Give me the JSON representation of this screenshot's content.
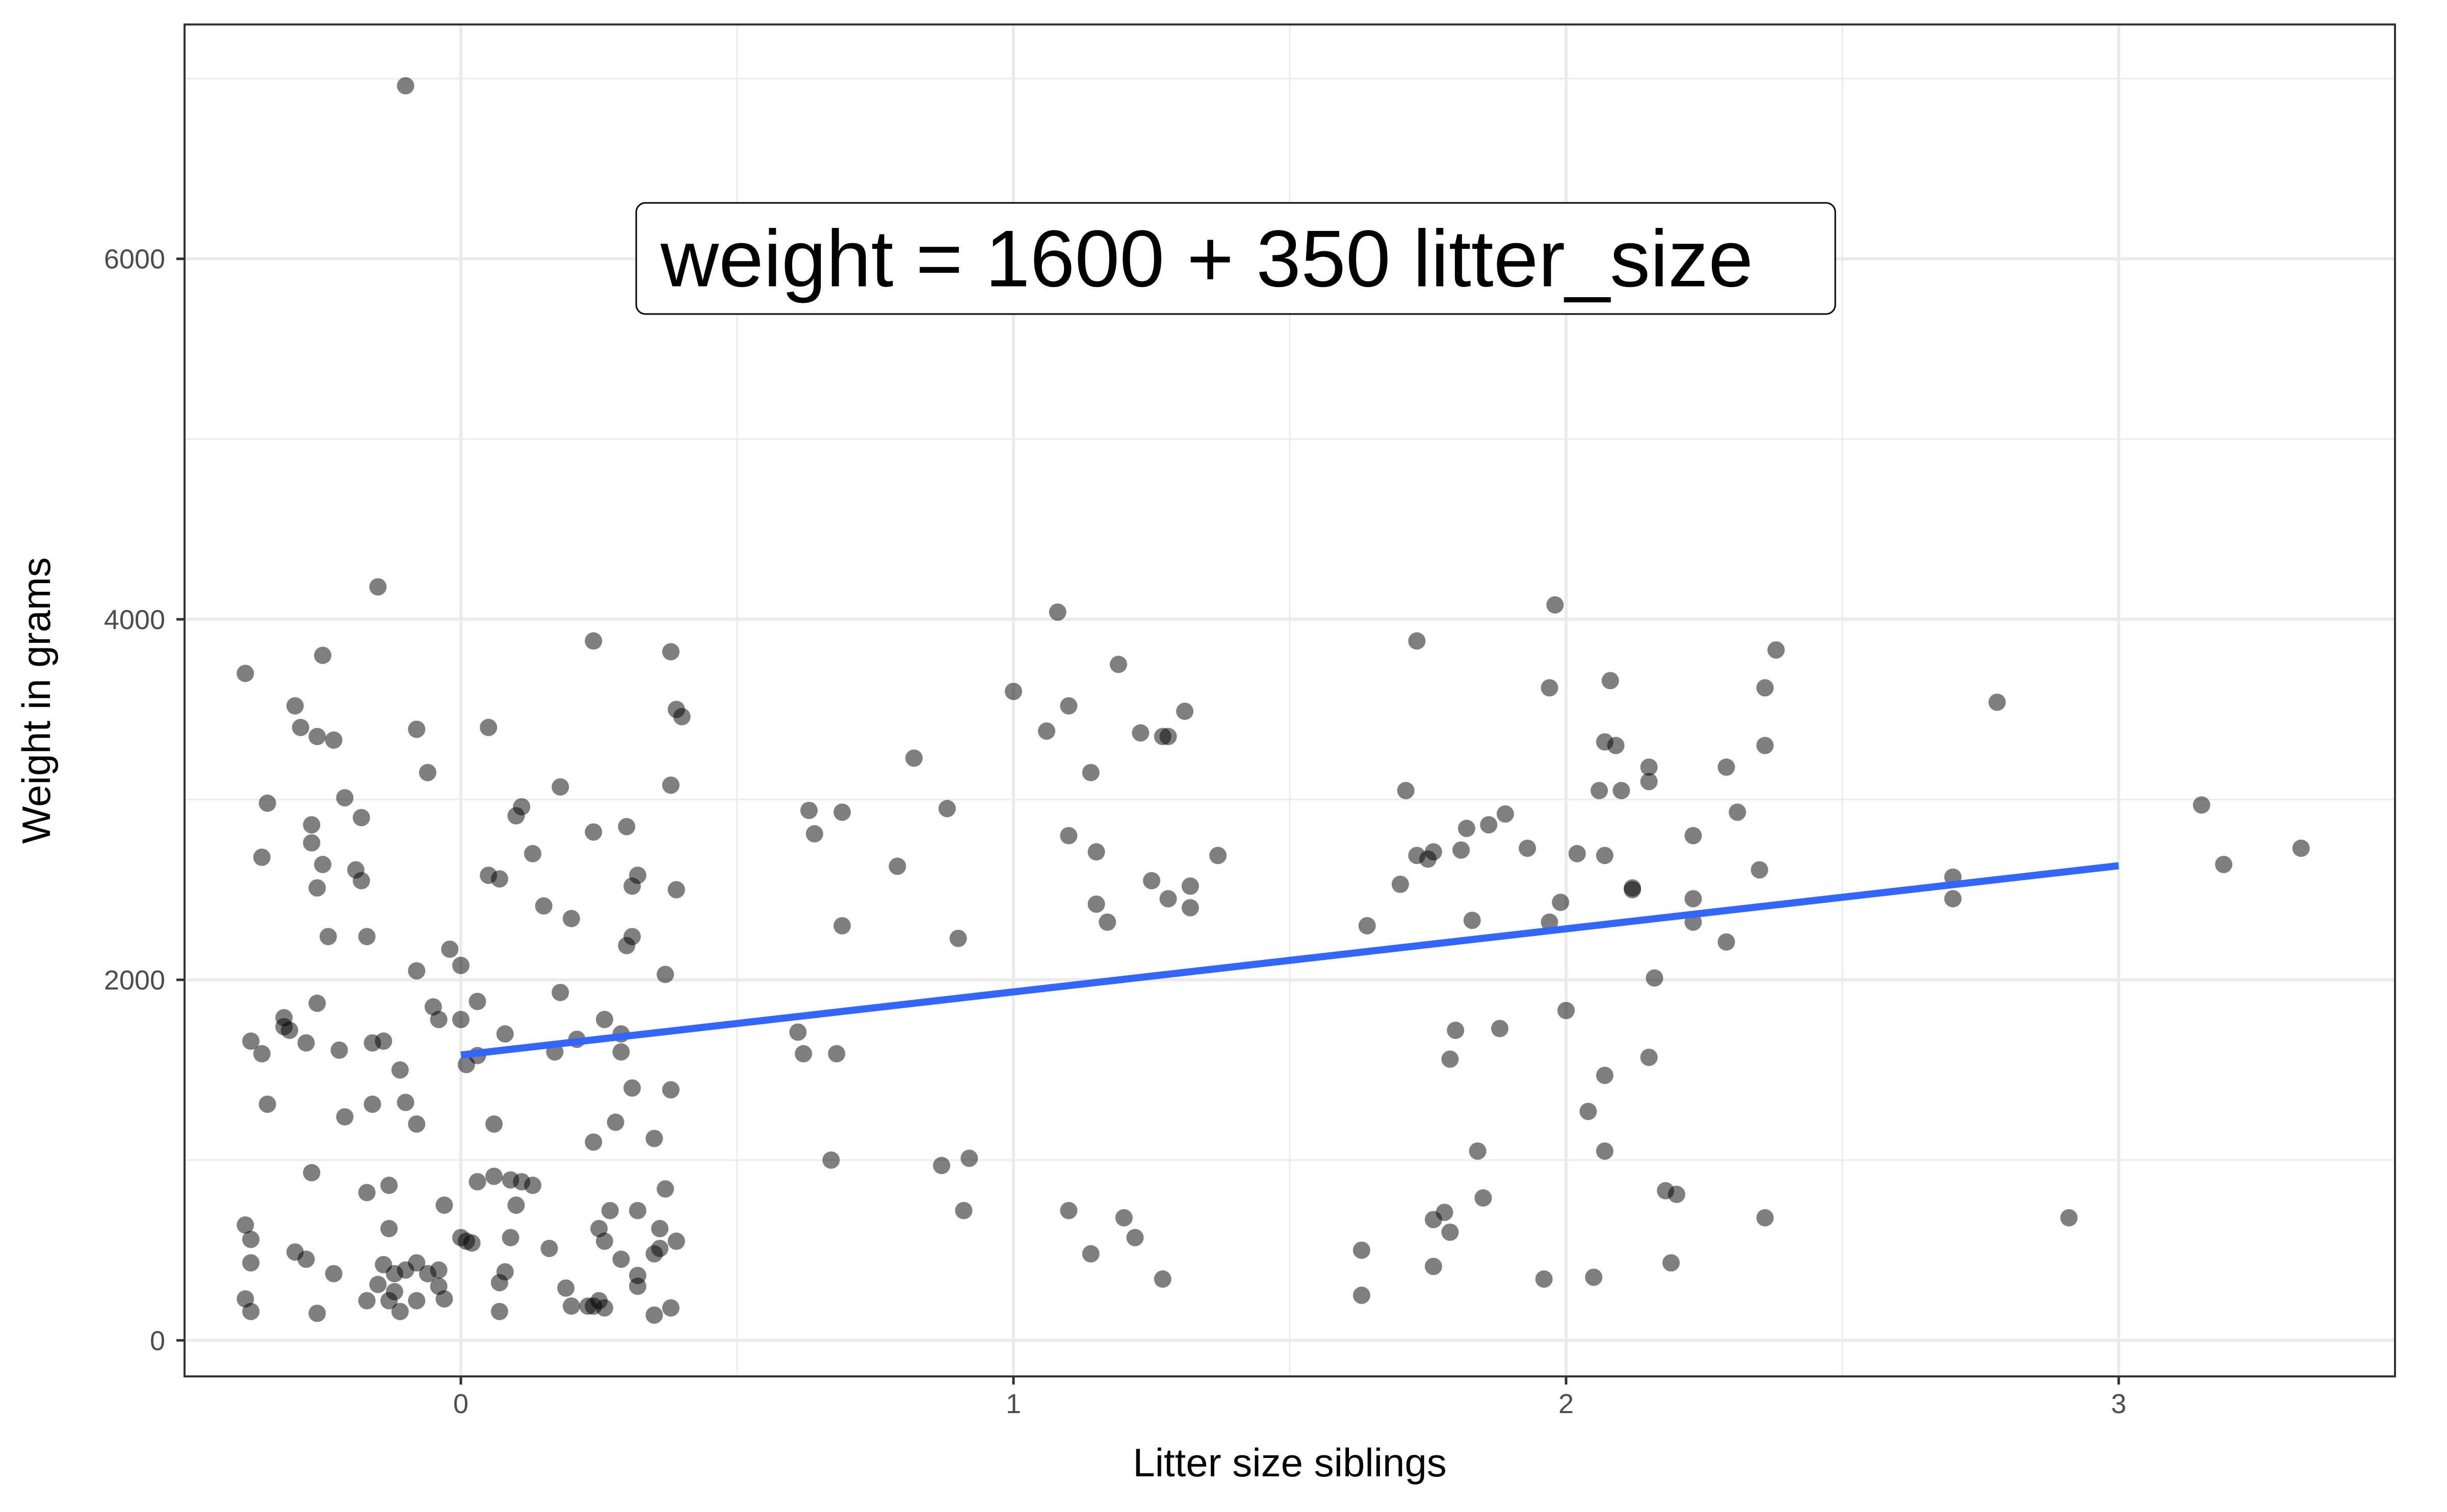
{
  "chart_data": {
    "type": "scatter",
    "title": "",
    "xlabel": "Litter size siblings",
    "ylabel": "Weight in grams",
    "xlim": [
      -0.5,
      3.5
    ],
    "ylim": [
      -200,
      7300
    ],
    "x_ticks": [
      0,
      1,
      2,
      3
    ],
    "y_ticks": [
      0,
      2000,
      4000,
      6000
    ],
    "grid": true,
    "annotation": "weight = 1600 + 350 litter_size",
    "colors": {
      "points": "#000000",
      "fit_line": "#3366ff",
      "grid": "#ebebeb",
      "panel_border": "#333333"
    },
    "fit_line": {
      "x": [
        0,
        3
      ],
      "y": [
        1583,
        2633
      ]
    },
    "points": [
      [
        -0.1,
        6960
      ],
      [
        -0.15,
        4180
      ],
      [
        -0.39,
        3700
      ],
      [
        -0.25,
        3800
      ],
      [
        -0.3,
        3520
      ],
      [
        -0.29,
        3400
      ],
      [
        -0.26,
        3350
      ],
      [
        -0.23,
        3330
      ],
      [
        -0.35,
        2980
      ],
      [
        -0.36,
        2680
      ],
      [
        -0.21,
        3010
      ],
      [
        -0.27,
        2860
      ],
      [
        -0.27,
        2760
      ],
      [
        -0.18,
        2900
      ],
      [
        -0.25,
        2640
      ],
      [
        -0.26,
        2510
      ],
      [
        -0.19,
        2610
      ],
      [
        -0.18,
        2550
      ],
      [
        -0.17,
        2240
      ],
      [
        -0.24,
        2240
      ],
      [
        -0.08,
        3390
      ],
      [
        -0.06,
        3150
      ],
      [
        -0.32,
        1790
      ],
      [
        -0.32,
        1740
      ],
      [
        -0.31,
        1720
      ],
      [
        -0.26,
        1870
      ],
      [
        -0.38,
        1660
      ],
      [
        -0.36,
        1590
      ],
      [
        -0.28,
        1650
      ],
      [
        -0.22,
        1610
      ],
      [
        -0.16,
        1650
      ],
      [
        -0.14,
        1660
      ],
      [
        -0.11,
        1500
      ],
      [
        -0.16,
        1310
      ],
      [
        -0.21,
        1240
      ],
      [
        -0.1,
        1320
      ],
      [
        -0.35,
        1310
      ],
      [
        -0.08,
        2050
      ],
      [
        -0.05,
        1850
      ],
      [
        -0.04,
        1780
      ],
      [
        -0.02,
        2170
      ],
      [
        0.0,
        2080
      ],
      [
        0.0,
        1780
      ],
      [
        0.01,
        1530
      ],
      [
        0.03,
        1880
      ],
      [
        -0.08,
        1200
      ],
      [
        -0.27,
        930
      ],
      [
        -0.17,
        820
      ],
      [
        -0.13,
        860
      ],
      [
        -0.03,
        750
      ],
      [
        -0.39,
        640
      ],
      [
        -0.38,
        560
      ],
      [
        -0.38,
        430
      ],
      [
        -0.3,
        490
      ],
      [
        -0.28,
        450
      ],
      [
        -0.23,
        370
      ],
      [
        -0.13,
        620
      ],
      [
        -0.14,
        420
      ],
      [
        -0.12,
        370
      ],
      [
        -0.12,
        270
      ],
      [
        -0.15,
        310
      ],
      [
        -0.13,
        220
      ],
      [
        -0.1,
        390
      ],
      [
        -0.08,
        430
      ],
      [
        -0.06,
        370
      ],
      [
        -0.04,
        390
      ],
      [
        -0.04,
        300
      ],
      [
        -0.03,
        230
      ],
      [
        -0.08,
        220
      ],
      [
        -0.11,
        160
      ],
      [
        -0.17,
        220
      ],
      [
        -0.26,
        150
      ],
      [
        -0.38,
        160
      ],
      [
        -0.39,
        230
      ],
      [
        0.0,
        570
      ],
      [
        0.02,
        540
      ],
      [
        0.01,
        550
      ],
      [
        0.05,
        3400
      ],
      [
        0.05,
        2580
      ],
      [
        0.07,
        2560
      ],
      [
        0.1,
        2910
      ],
      [
        0.11,
        2960
      ],
      [
        0.13,
        2700
      ],
      [
        0.15,
        2410
      ],
      [
        0.18,
        3070
      ],
      [
        0.2,
        2340
      ],
      [
        0.24,
        3880
      ],
      [
        0.24,
        2820
      ],
      [
        0.3,
        2850
      ],
      [
        0.31,
        2520
      ],
      [
        0.32,
        2580
      ],
      [
        0.31,
        2240
      ],
      [
        0.3,
        2190
      ],
      [
        0.38,
        3820
      ],
      [
        0.38,
        3080
      ],
      [
        0.39,
        3500
      ],
      [
        0.4,
        3460
      ],
      [
        0.39,
        2500
      ],
      [
        0.37,
        2030
      ],
      [
        0.18,
        1930
      ],
      [
        0.21,
        1670
      ],
      [
        0.26,
        1780
      ],
      [
        0.29,
        1700
      ],
      [
        0.17,
        1600
      ],
      [
        0.29,
        1600
      ],
      [
        0.08,
        1700
      ],
      [
        0.03,
        1580
      ],
      [
        0.06,
        1200
      ],
      [
        0.24,
        1100
      ],
      [
        0.28,
        1210
      ],
      [
        0.31,
        1400
      ],
      [
        0.35,
        1120
      ],
      [
        0.38,
        1390
      ],
      [
        0.03,
        880
      ],
      [
        0.06,
        910
      ],
      [
        0.09,
        890
      ],
      [
        0.1,
        750
      ],
      [
        0.11,
        880
      ],
      [
        0.13,
        860
      ],
      [
        0.25,
        620
      ],
      [
        0.27,
        720
      ],
      [
        0.32,
        720
      ],
      [
        0.36,
        620
      ],
      [
        0.39,
        550
      ],
      [
        0.35,
        480
      ],
      [
        0.36,
        510
      ],
      [
        0.26,
        550
      ],
      [
        0.29,
        450
      ],
      [
        0.32,
        360
      ],
      [
        0.32,
        300
      ],
      [
        0.16,
        510
      ],
      [
        0.09,
        570
      ],
      [
        0.08,
        380
      ],
      [
        0.07,
        320
      ],
      [
        0.19,
        290
      ],
      [
        0.2,
        190
      ],
      [
        0.24,
        190
      ],
      [
        0.25,
        220
      ],
      [
        0.23,
        190
      ],
      [
        0.26,
        180
      ],
      [
        0.37,
        840
      ],
      [
        0.35,
        140
      ],
      [
        0.38,
        180
      ],
      [
        0.07,
        160
      ],
      [
        0.63,
        2940
      ],
      [
        0.64,
        2810
      ],
      [
        0.69,
        2930
      ],
      [
        0.69,
        2300
      ],
      [
        0.61,
        1710
      ],
      [
        0.62,
        1590
      ],
      [
        0.68,
        1590
      ],
      [
        0.67,
        1000
      ],
      [
        0.79,
        2630
      ],
      [
        0.82,
        3230
      ],
      [
        0.87,
        970
      ],
      [
        0.88,
        2950
      ],
      [
        0.9,
        2230
      ],
      [
        0.91,
        720
      ],
      [
        0.92,
        1010
      ],
      [
        1.0,
        3600
      ],
      [
        1.06,
        3380
      ],
      [
        1.08,
        4040
      ],
      [
        1.1,
        3520
      ],
      [
        1.1,
        2800
      ],
      [
        1.14,
        3150
      ],
      [
        1.15,
        2710
      ],
      [
        1.15,
        2420
      ],
      [
        1.17,
        2320
      ],
      [
        1.19,
        3750
      ],
      [
        1.23,
        3370
      ],
      [
        1.25,
        2550
      ],
      [
        1.27,
        3350
      ],
      [
        1.28,
        3350
      ],
      [
        1.28,
        2450
      ],
      [
        1.31,
        3490
      ],
      [
        1.32,
        2400
      ],
      [
        1.32,
        2520
      ],
      [
        1.37,
        2690
      ],
      [
        1.1,
        720
      ],
      [
        1.14,
        480
      ],
      [
        1.2,
        680
      ],
      [
        1.22,
        570
      ],
      [
        1.27,
        340
      ],
      [
        1.64,
        2300
      ],
      [
        1.63,
        500
      ],
      [
        1.63,
        250
      ],
      [
        1.71,
        3050
      ],
      [
        1.7,
        2530
      ],
      [
        1.73,
        3880
      ],
      [
        1.73,
        2690
      ],
      [
        1.75,
        2670
      ],
      [
        1.76,
        2710
      ],
      [
        1.79,
        1560
      ],
      [
        1.8,
        1720
      ],
      [
        1.81,
        2720
      ],
      [
        1.82,
        2840
      ],
      [
        1.83,
        2330
      ],
      [
        1.86,
        2860
      ],
      [
        1.88,
        1730
      ],
      [
        1.89,
        2920
      ],
      [
        1.93,
        2730
      ],
      [
        1.76,
        670
      ],
      [
        1.78,
        710
      ],
      [
        1.79,
        600
      ],
      [
        1.76,
        410
      ],
      [
        1.84,
        1050
      ],
      [
        1.85,
        790
      ],
      [
        1.96,
        340
      ],
      [
        1.97,
        3620
      ],
      [
        1.98,
        4080
      ],
      [
        1.97,
        2320
      ],
      [
        1.99,
        2430
      ],
      [
        2.0,
        1830
      ],
      [
        2.02,
        2700
      ],
      [
        2.04,
        1270
      ],
      [
        2.05,
        350
      ],
      [
        2.06,
        3050
      ],
      [
        2.07,
        3320
      ],
      [
        2.08,
        3660
      ],
      [
        2.07,
        2690
      ],
      [
        2.09,
        3300
      ],
      [
        2.1,
        3050
      ],
      [
        2.07,
        1470
      ],
      [
        2.07,
        1050
      ],
      [
        2.12,
        2510
      ],
      [
        2.12,
        2500
      ],
      [
        2.15,
        3180
      ],
      [
        2.15,
        3100
      ],
      [
        2.16,
        2010
      ],
      [
        2.15,
        1570
      ],
      [
        2.18,
        830
      ],
      [
        2.19,
        430
      ],
      [
        2.2,
        810
      ],
      [
        2.23,
        2800
      ],
      [
        2.23,
        2450
      ],
      [
        2.23,
        2320
      ],
      [
        2.29,
        3180
      ],
      [
        2.29,
        2210
      ],
      [
        2.31,
        2930
      ],
      [
        2.35,
        2610
      ],
      [
        2.36,
        3620
      ],
      [
        2.36,
        3300
      ],
      [
        2.38,
        3830
      ],
      [
        2.36,
        680
      ],
      [
        2.7,
        2570
      ],
      [
        2.7,
        2450
      ],
      [
        2.78,
        3540
      ],
      [
        2.91,
        680
      ],
      [
        3.15,
        2970
      ],
      [
        3.19,
        2640
      ],
      [
        3.33,
        2730
      ]
    ]
  }
}
